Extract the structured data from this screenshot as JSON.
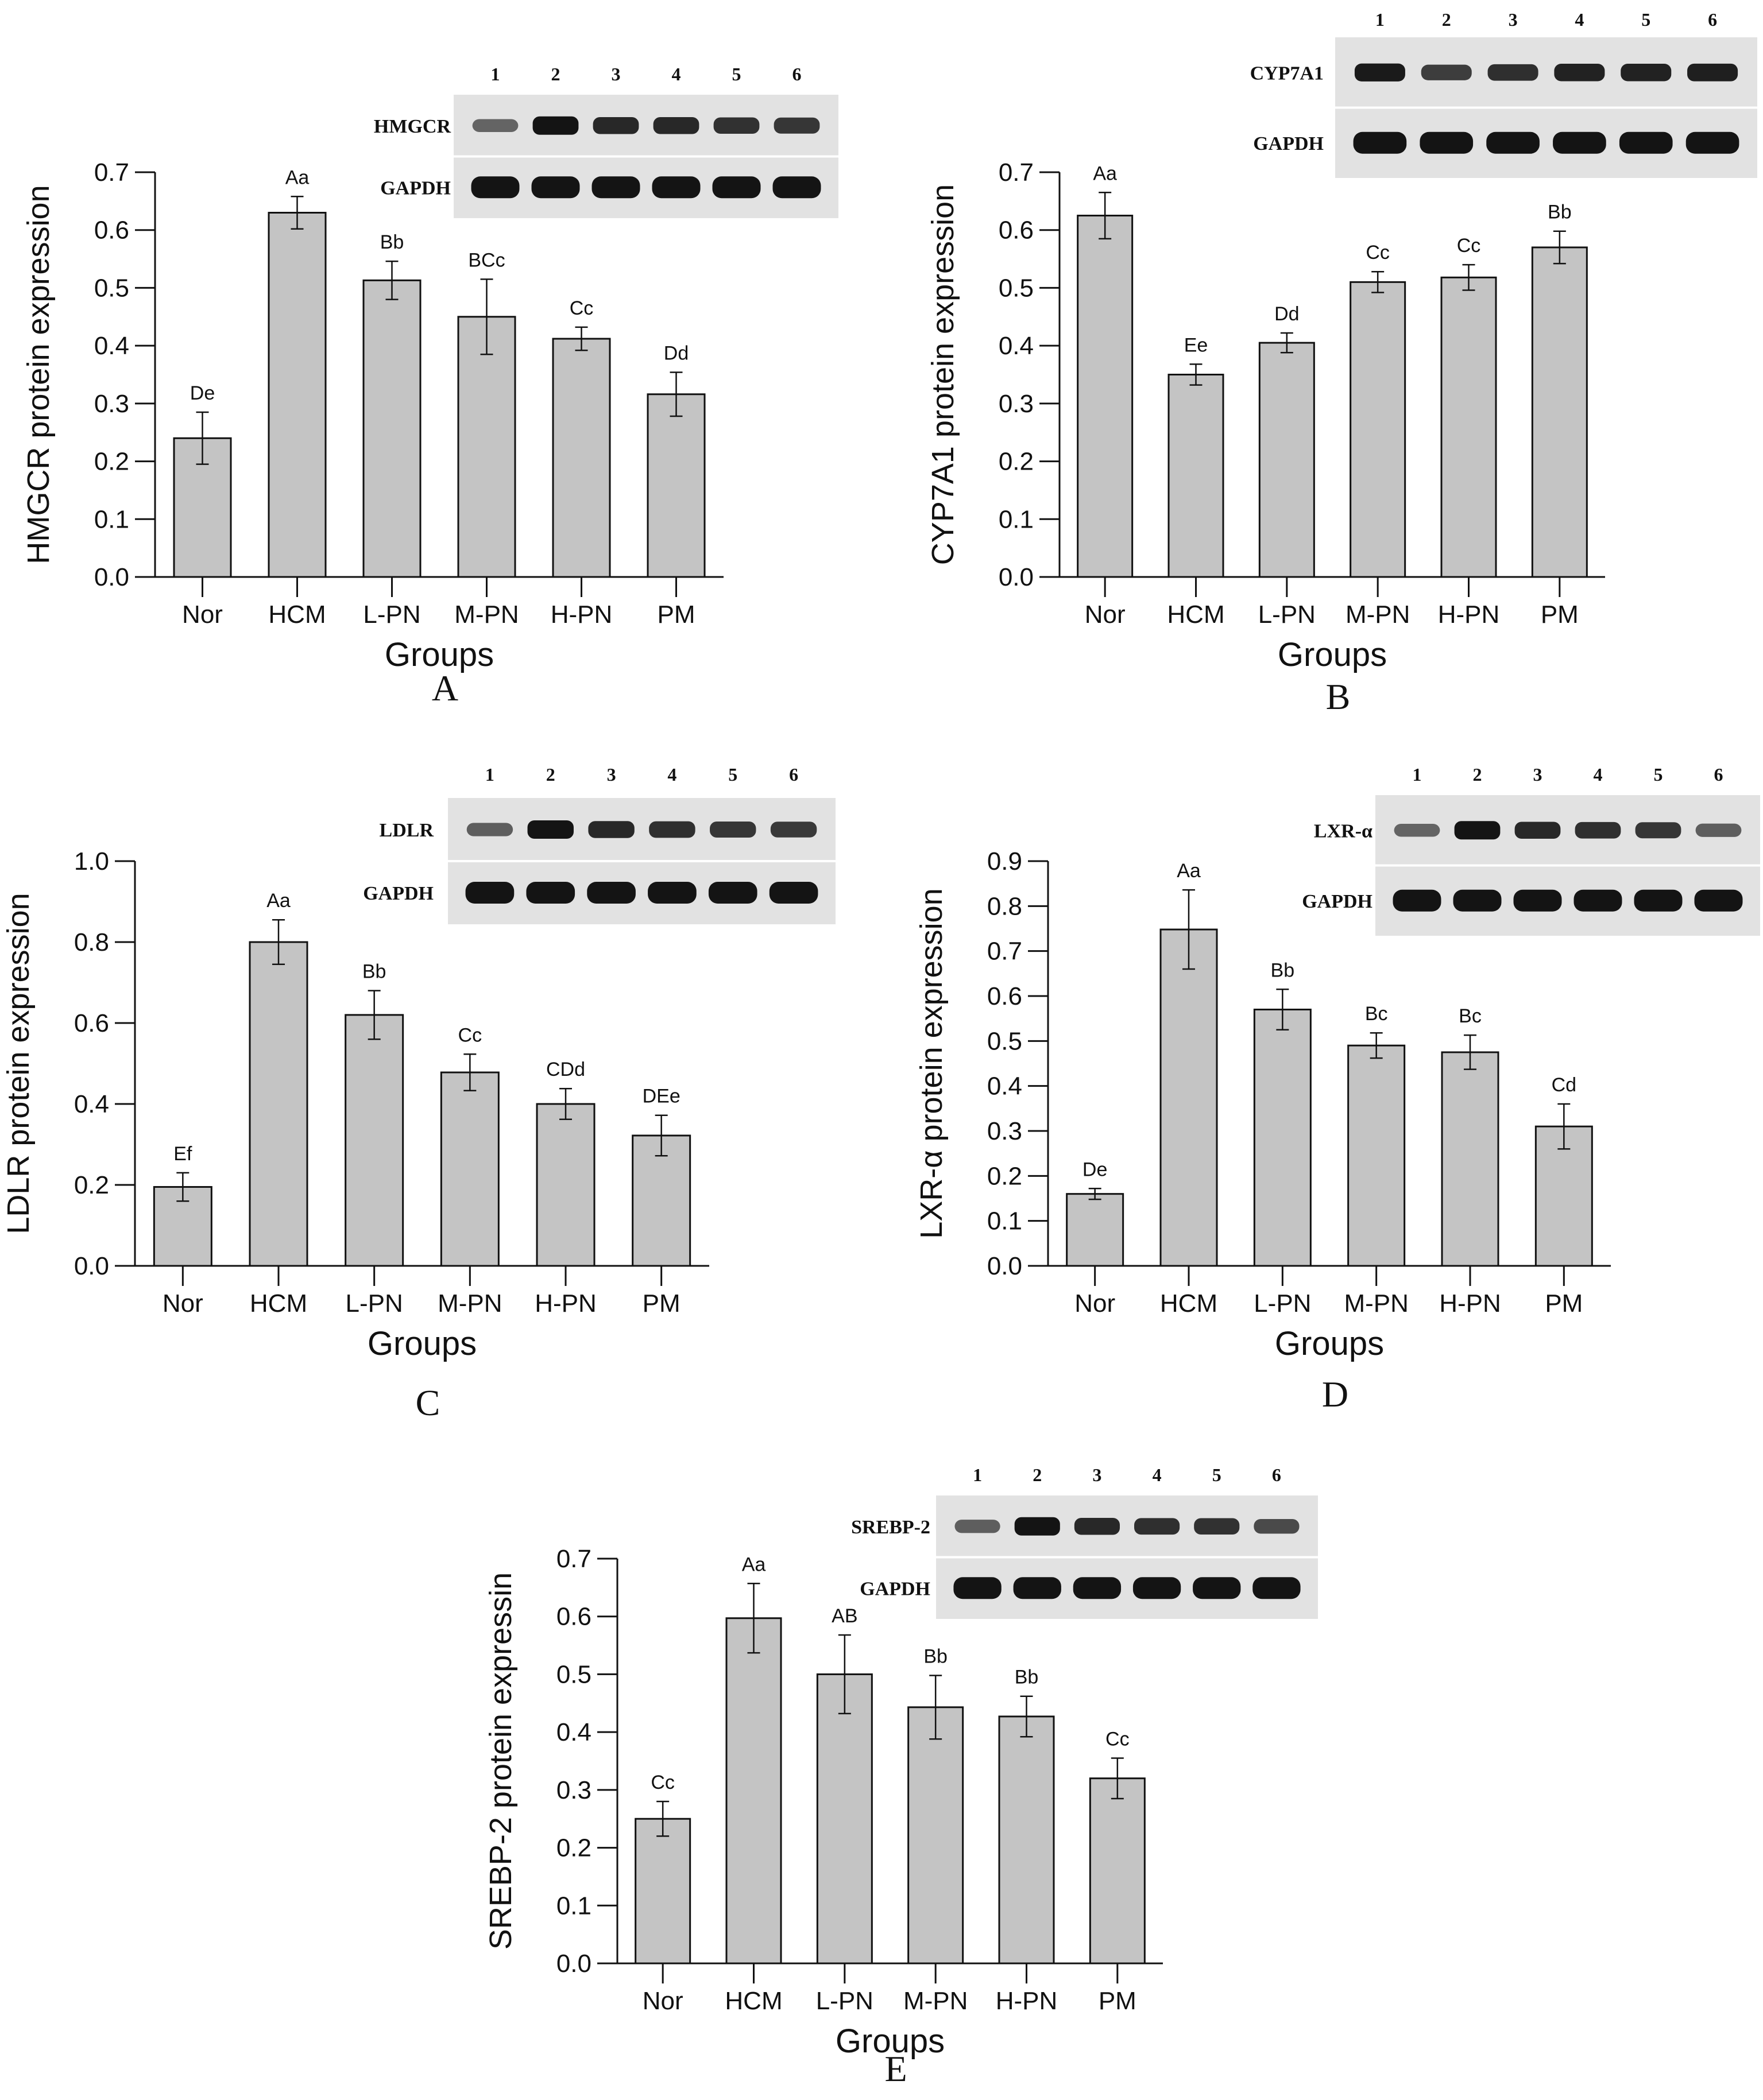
{
  "chart_data": [
    {
      "type": "bar",
      "panel_label": "A",
      "categories": [
        "Nor",
        "HCM",
        "L-PN",
        "M-PN",
        "H-PN",
        "PM"
      ],
      "values": [
        0.24,
        0.63,
        0.513,
        0.45,
        0.412,
        0.316
      ],
      "errors": [
        0.045,
        0.028,
        0.033,
        0.065,
        0.02,
        0.038
      ],
      "significance": [
        "De",
        "Aa",
        "Bb",
        "BCc",
        "Cc",
        "Dd"
      ],
      "xlabel": "Groups",
      "ylabel": "HMGCR protein expression",
      "ylim": [
        0,
        0.7
      ],
      "yticks": [
        "0.0",
        "0.1",
        "0.2",
        "0.3",
        "0.4",
        "0.5",
        "0.6",
        "0.7"
      ],
      "grid": false,
      "blot": {
        "lanes": [
          "1",
          "2",
          "3",
          "4",
          "5",
          "6"
        ],
        "target": "HMGCR",
        "target_intensity": [
          0.4,
          1.0,
          0.85,
          0.85,
          0.78,
          0.75
        ],
        "control": "GAPDH"
      }
    },
    {
      "type": "bar",
      "panel_label": "B",
      "categories": [
        "Nor",
        "HCM",
        "L-PN",
        "M-PN",
        "H-PN",
        "PM"
      ],
      "values": [
        0.625,
        0.35,
        0.405,
        0.51,
        0.518,
        0.57
      ],
      "errors": [
        0.04,
        0.018,
        0.017,
        0.018,
        0.022,
        0.028
      ],
      "significance": [
        "Aa",
        "Ee",
        "Dd",
        "Cc",
        "Cc",
        "Bb"
      ],
      "xlabel": "Groups",
      "ylabel": "CYP7A1 protein expression",
      "ylim": [
        0,
        0.7
      ],
      "yticks": [
        "0.0",
        "0.1",
        "0.2",
        "0.3",
        "0.4",
        "0.5",
        "0.6",
        "0.7"
      ],
      "grid": false,
      "blot": {
        "lanes": [
          "1",
          "2",
          "3",
          "4",
          "5",
          "6"
        ],
        "target": "CYP7A1",
        "target_intensity": [
          0.95,
          0.7,
          0.8,
          0.9,
          0.9,
          0.92
        ],
        "control": "GAPDH"
      }
    },
    {
      "type": "bar",
      "panel_label": "C",
      "categories": [
        "Nor",
        "HCM",
        "L-PN",
        "M-PN",
        "H-PN",
        "PM"
      ],
      "values": [
        0.195,
        0.8,
        0.62,
        0.478,
        0.4,
        0.322
      ],
      "errors": [
        0.035,
        0.055,
        0.06,
        0.045,
        0.038,
        0.05
      ],
      "significance": [
        "Ef",
        "Aa",
        "Bb",
        "Cc",
        "CDd",
        "DEe"
      ],
      "xlabel": "Groups",
      "ylabel": "LDLR protein expression",
      "ylim": [
        0,
        1.0
      ],
      "yticks": [
        "0.0",
        "0.2",
        "0.4",
        "0.6",
        "0.8",
        "1.0"
      ],
      "grid": false,
      "blot": {
        "lanes": [
          "1",
          "2",
          "3",
          "4",
          "5",
          "6"
        ],
        "target": "LDLR",
        "target_intensity": [
          0.45,
          1.0,
          0.85,
          0.8,
          0.75,
          0.72
        ],
        "control": "GAPDH"
      }
    },
    {
      "type": "bar",
      "panel_label": "D",
      "categories": [
        "Nor",
        "HCM",
        "L-PN",
        "M-PN",
        "H-PN",
        "PM"
      ],
      "values": [
        0.16,
        0.748,
        0.57,
        0.49,
        0.475,
        0.31
      ],
      "errors": [
        0.012,
        0.088,
        0.045,
        0.028,
        0.038,
        0.05
      ],
      "significance": [
        "De",
        "Aa",
        "Bb",
        "Bc",
        "Bc",
        "Cd"
      ],
      "xlabel": "Groups",
      "ylabel": "LXR-α protein expression",
      "ylim": [
        0,
        0.9
      ],
      "yticks": [
        "0.0",
        "0.1",
        "0.2",
        "0.3",
        "0.4",
        "0.5",
        "0.6",
        "0.7",
        "0.8",
        "0.9"
      ],
      "grid": false,
      "blot": {
        "lanes": [
          "1",
          "2",
          "3",
          "4",
          "5",
          "6"
        ],
        "target": "LXR-α",
        "target_intensity": [
          0.4,
          1.0,
          0.85,
          0.8,
          0.75,
          0.45
        ],
        "control": "GAPDH"
      }
    },
    {
      "type": "bar",
      "panel_label": "E",
      "categories": [
        "Nor",
        "HCM",
        "L-PN",
        "M-PN",
        "H-PN",
        "PM"
      ],
      "values": [
        0.25,
        0.597,
        0.5,
        0.443,
        0.427,
        0.32
      ],
      "errors": [
        0.03,
        0.06,
        0.068,
        0.055,
        0.035,
        0.035
      ],
      "significance": [
        "Cc",
        "Aa",
        "AB",
        "Bb",
        "Bb",
        "Cc"
      ],
      "xlabel": "Groups",
      "ylabel": "SREBP-2 protein expressin",
      "ylim": [
        0,
        0.7
      ],
      "yticks": [
        "0.0",
        "0.1",
        "0.2",
        "0.3",
        "0.4",
        "0.5",
        "0.6",
        "0.7"
      ],
      "grid": false,
      "blot": {
        "lanes": [
          "1",
          "2",
          "3",
          "4",
          "5",
          "6"
        ],
        "target": "SREBP-2",
        "target_intensity": [
          0.45,
          1.0,
          0.85,
          0.8,
          0.78,
          0.6
        ],
        "control": "GAPDH"
      }
    }
  ],
  "colors": {
    "bar_fill": "#c4c4c4",
    "bar_stroke": "#111111",
    "blot_bg": "#e2e2e2",
    "band": "#141414"
  }
}
